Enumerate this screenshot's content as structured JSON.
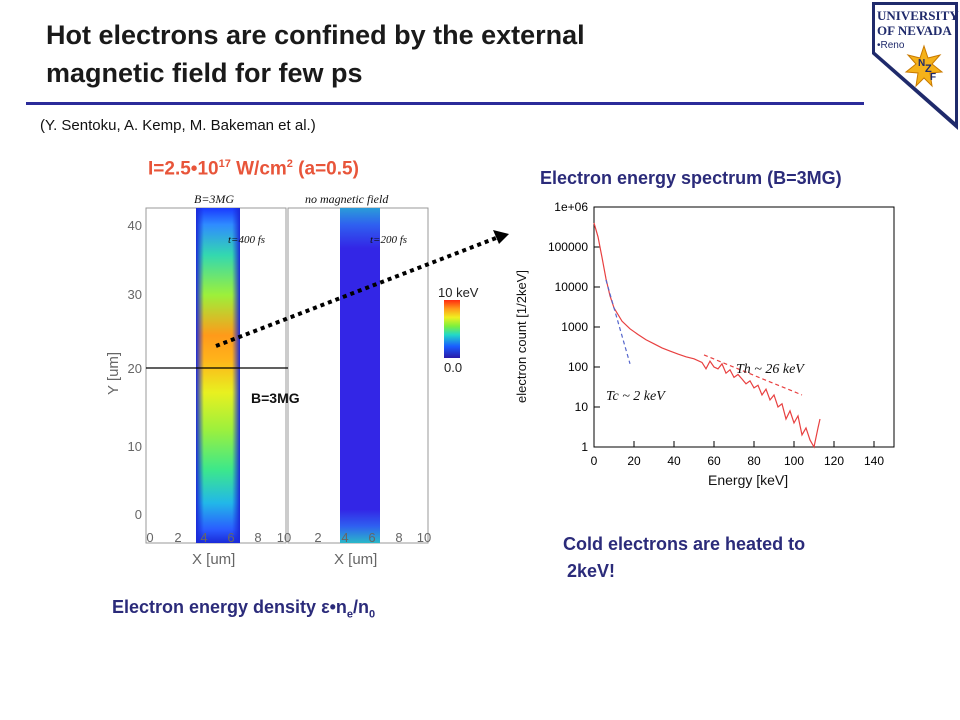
{
  "title_line1": "Hot electrons are confined by the external",
  "title_line2": "magnetic field for few ps",
  "citation": "(Y. Sentoku, A. Kemp, M. Bakeman et al.)",
  "logo": {
    "line1": "UNIVERSITY",
    "line2": "OF NEVADA",
    "line3": "•Reno",
    "n": "N",
    "z": "Z",
    "f": "F"
  },
  "intensity": {
    "prefix": "I=2.5•10",
    "exp": "17",
    "unit": " W/cm",
    "unit_exp": "2",
    "suffix": " (a=0.5)"
  },
  "sim": {
    "panel_left_title": "B=3MG",
    "panel_right_title": "no magnetic field",
    "time_left": "t=400 fs",
    "time_right": "t=200 fs",
    "y_ticks": [
      "40",
      "30",
      "20",
      "10",
      "0"
    ],
    "x_ticks_left": [
      "0",
      "2",
      "4",
      "6",
      "8",
      "10"
    ],
    "x_ticks_right": [
      "2",
      "4",
      "6",
      "8",
      "10"
    ],
    "y_label": "Y [um]",
    "x_label": "X [um]",
    "colorbar_max": "10 keV",
    "colorbar_min": "0.0",
    "b_label": "B=3MG"
  },
  "spectrum_title": "Electron energy spectrum (B=3MG)",
  "chart_data": {
    "type": "line",
    "xlabel": "Energy [keV]",
    "ylabel": "electron count [1/2keV]",
    "xlim": [
      0,
      150
    ],
    "ylim": [
      1,
      1000000
    ],
    "y_scale": "log",
    "x_ticks": [
      "0",
      "20",
      "40",
      "60",
      "80",
      "100",
      "120",
      "140"
    ],
    "y_ticks": [
      "1e+06",
      "100000",
      "10000",
      "1000",
      "100",
      "10",
      "1"
    ],
    "series": [
      {
        "values": [
          [
            0,
            400000
          ],
          [
            2,
            180000
          ],
          [
            4,
            55000
          ],
          [
            6,
            16000
          ],
          [
            8,
            6000
          ],
          [
            10,
            3000
          ],
          [
            14,
            1400
          ],
          [
            18,
            900
          ],
          [
            22,
            650
          ],
          [
            26,
            480
          ],
          [
            30,
            380
          ],
          [
            34,
            300
          ],
          [
            38,
            250
          ],
          [
            42,
            210
          ],
          [
            46,
            180
          ],
          [
            50,
            160
          ],
          [
            54,
            130
          ],
          [
            56,
            90
          ],
          [
            58,
            140
          ],
          [
            60,
            100
          ],
          [
            62,
            90
          ],
          [
            64,
            120
          ],
          [
            66,
            70
          ],
          [
            68,
            85
          ],
          [
            70,
            55
          ],
          [
            72,
            65
          ],
          [
            74,
            50
          ],
          [
            76,
            38
          ],
          [
            78,
            45
          ],
          [
            80,
            30
          ],
          [
            82,
            35
          ],
          [
            84,
            20
          ],
          [
            86,
            28
          ],
          [
            88,
            15
          ],
          [
            90,
            20
          ],
          [
            92,
            10
          ],
          [
            94,
            12
          ],
          [
            96,
            5
          ],
          [
            98,
            8
          ],
          [
            100,
            4
          ],
          [
            102,
            6
          ],
          [
            104,
            2
          ],
          [
            106,
            3
          ],
          [
            108,
            1.5
          ],
          [
            110,
            1
          ],
          [
            112,
            3
          ],
          [
            113,
            5
          ]
        ]
      },
      {
        "name": "Tc ~ 2 keV",
        "values": [
          [
            6,
            15000
          ],
          [
            18,
            120
          ]
        ]
      },
      {
        "name": "Th ~ 26 keV",
        "values": [
          [
            55,
            200
          ],
          [
            104,
            20
          ]
        ]
      }
    ],
    "annotations": [
      "Tc ~ 2 keV",
      "Th ~ 26 keV"
    ]
  },
  "cold_line1": "Cold electrons are heated to",
  "cold_line2": "2keV!",
  "edensity": {
    "prefix": "Electron energy density ",
    "eps": "ε",
    "dot": "•n",
    "sub_e": "e",
    "slash": "/n",
    "sub_0": "0"
  }
}
